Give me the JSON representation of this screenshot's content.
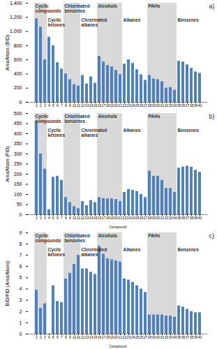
{
  "chart_data": [
    {
      "type": "bar",
      "annotation": "a)",
      "y_label": "Area/Mass (BID)",
      "color": "#4f81bd",
      "categories": [
        1,
        2,
        3,
        4,
        5,
        6,
        7,
        8,
        9,
        10,
        11,
        12,
        13,
        14,
        15,
        16,
        17,
        18,
        19,
        20,
        21,
        22,
        23,
        24,
        25,
        26,
        27,
        28,
        29,
        30,
        31,
        32,
        33,
        34,
        35,
        36,
        37,
        38,
        39,
        40
      ],
      "values": [
        1180,
        1060,
        600,
        920,
        800,
        560,
        470,
        400,
        320,
        250,
        230,
        380,
        260,
        360,
        270,
        650,
        570,
        520,
        500,
        450,
        390,
        540,
        600,
        550,
        460,
        390,
        310,
        380,
        330,
        320,
        290,
        200,
        210,
        170,
        580,
        570,
        530,
        480,
        430,
        410
      ],
      "ylim": [
        0,
        1400
      ],
      "yticks": [
        0,
        200,
        400,
        600,
        800,
        1000,
        1200,
        1400
      ],
      "groups": [
        {
          "name": "Cyclic compounds",
          "start": 1,
          "end": 3
        },
        {
          "name": "Cyclic ketones",
          "start": 4,
          "end": 7
        },
        {
          "name": "Chlorinated benzenes",
          "start": 8,
          "end": 11
        },
        {
          "name": "Chrorinated alkanes",
          "start": 12,
          "end": 15
        },
        {
          "name": "Alcohols",
          "start": 16,
          "end": 21
        },
        {
          "name": "Alkanes",
          "start": 22,
          "end": 27
        },
        {
          "name": "PAHs",
          "start": 28,
          "end": 34
        },
        {
          "name": "Benzenes",
          "start": 35,
          "end": 40
        }
      ]
    },
    {
      "type": "bar",
      "annotation": "b)",
      "y_label": "Area/Mass (FID)",
      "x_label": "Compound",
      "color": "#4f81bd",
      "categories": [
        1,
        2,
        3,
        4,
        5,
        6,
        7,
        8,
        9,
        10,
        11,
        12,
        13,
        14,
        15,
        16,
        17,
        18,
        19,
        20,
        21,
        22,
        23,
        24,
        25,
        26,
        27,
        28,
        29,
        30,
        31,
        32,
        33,
        34,
        35,
        36,
        37,
        38,
        39,
        40
      ],
      "values": [
        460,
        300,
        225,
        25,
        185,
        190,
        170,
        85,
        60,
        40,
        30,
        65,
        45,
        70,
        60,
        85,
        80,
        78,
        78,
        75,
        65,
        110,
        125,
        120,
        115,
        100,
        85,
        215,
        190,
        190,
        170,
        130,
        130,
        110,
        230,
        235,
        240,
        235,
        220,
        210
      ],
      "ylim": [
        0,
        500
      ],
      "yticks": [
        0,
        50,
        100,
        150,
        200,
        250,
        300,
        350,
        400,
        450,
        500
      ],
      "groups": [
        {
          "name": "Cyclic compounds",
          "start": 1,
          "end": 3
        },
        {
          "name": "Cyclic ketones",
          "start": 4,
          "end": 7
        },
        {
          "name": "Chlorinated benzenes",
          "start": 8,
          "end": 11
        },
        {
          "name": "Chrorinated alkanes",
          "start": 12,
          "end": 15
        },
        {
          "name": "Alcohols",
          "start": 16,
          "end": 21
        },
        {
          "name": "Alkanes",
          "start": 22,
          "end": 27
        },
        {
          "name": "PAHs",
          "start": 28,
          "end": 34
        },
        {
          "name": "Benzenes",
          "start": 35,
          "end": 40
        }
      ]
    },
    {
      "type": "bar",
      "annotation": "c)",
      "y_label": "BID/FID (Area/Mass)",
      "x_label": "Compound",
      "color": "#4f81bd",
      "categories": [
        1,
        2,
        3,
        4,
        5,
        6,
        7,
        8,
        9,
        10,
        11,
        12,
        13,
        14,
        15,
        16,
        17,
        18,
        19,
        20,
        21,
        22,
        23,
        24,
        25,
        26,
        27,
        28,
        29,
        30,
        31,
        32,
        33,
        34,
        35,
        36,
        37,
        38,
        39,
        40
      ],
      "values": [
        3.9,
        2.3,
        2.7,
        null,
        4.3,
        2.9,
        2.8,
        4.9,
        5.4,
        6.2,
        7.0,
        5.8,
        5.8,
        5.5,
        5.3,
        7.8,
        7.1,
        6.7,
        6.6,
        6.5,
        6.4,
        4.9,
        4.8,
        4.6,
        4.3,
        4.0,
        3.7,
        1.7,
        1.7,
        1.7,
        1.7,
        1.6,
        1.6,
        1.5,
        2.5,
        2.4,
        2.2,
        2.0,
        1.9,
        1.9
      ],
      "ylim": [
        0,
        9
      ],
      "yticks": [
        0,
        1,
        2,
        3,
        4,
        5,
        6,
        7,
        8,
        9
      ],
      "groups": [
        {
          "name": "Cyclic compounds",
          "start": 1,
          "end": 3
        },
        {
          "name": "Cyclic ketones",
          "start": 4,
          "end": 7
        },
        {
          "name": "Chlorinated benzenes",
          "start": 8,
          "end": 11
        },
        {
          "name": "Chrorinated alkanes",
          "start": 12,
          "end": 15
        },
        {
          "name": "Alcohols",
          "start": 16,
          "end": 21
        },
        {
          "name": "Alkanes",
          "start": 22,
          "end": 27
        },
        {
          "name": "PAHs",
          "start": 28,
          "end": 34
        },
        {
          "name": "Benzenes",
          "start": 35,
          "end": 40
        }
      ]
    }
  ]
}
